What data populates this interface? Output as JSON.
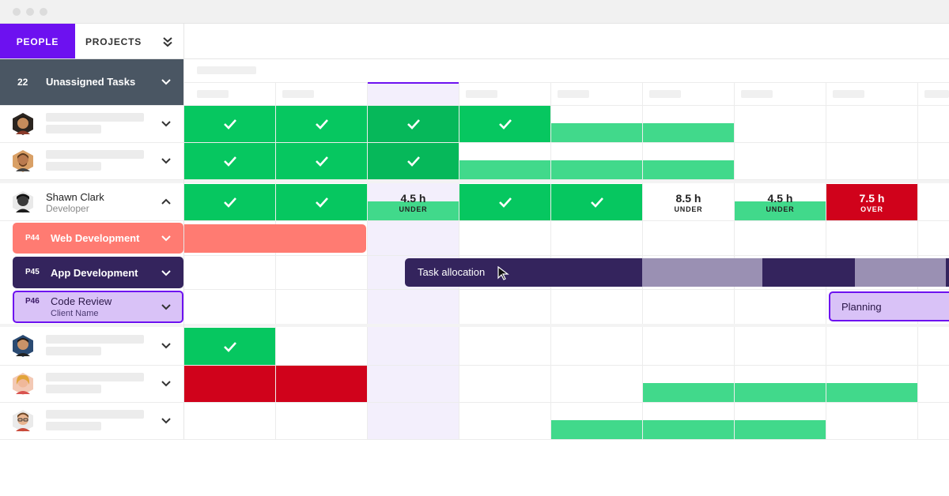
{
  "tabs": {
    "people": "PEOPLE",
    "projects": "PROJECTS"
  },
  "unassigned": {
    "count": "22",
    "label": "Unassigned Tasks"
  },
  "shawn": {
    "name": "Shawn Clark",
    "role": "Developer",
    "cells": [
      {
        "hours": "4.5 h",
        "tag": "UNDER"
      },
      {
        "hours": "8.5 h",
        "tag": "UNDER"
      },
      {
        "hours": "4.5 h",
        "tag": "UNDER"
      },
      {
        "hours": "7.5 h",
        "tag": "OVER"
      }
    ]
  },
  "projects": [
    {
      "code": "P44",
      "name": "Web Development",
      "color": "#ff7b72"
    },
    {
      "code": "P45",
      "name": "App Development",
      "color": "#34245d"
    },
    {
      "code": "P46",
      "name": "Code Review",
      "client": "Client Name",
      "color": "#d9c2f7"
    }
  ],
  "bars": {
    "task_allocation": "Task allocation",
    "planning": "Planning"
  },
  "colors": {
    "accent": "#6d11f0",
    "green": "#06c760",
    "light_green": "#41d98b",
    "red": "#d0021b",
    "unassigned_bg": "#4a5663"
  }
}
